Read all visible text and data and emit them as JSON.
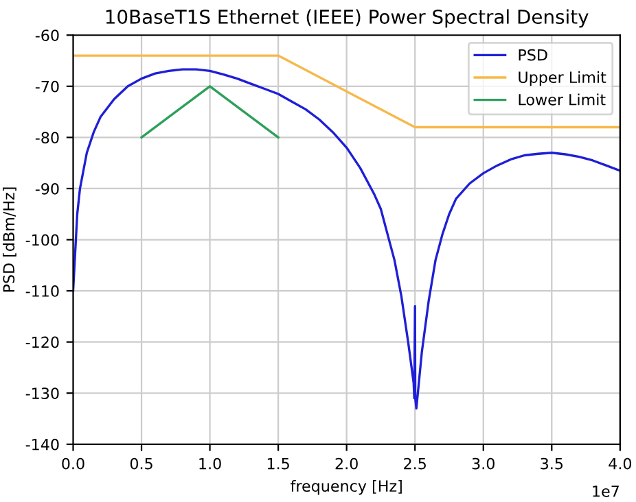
{
  "chart_data": {
    "type": "line",
    "title": "10BaseT1S Ethernet (IEEE) Power Spectral Density",
    "xlabel": "frequency [Hz]",
    "ylabel": "PSD [dBm/Hz]",
    "series": [
      {
        "name": "PSD",
        "color": "#1f1fd6",
        "x": [
          0.0,
          0.01,
          0.03,
          0.05,
          0.1,
          0.15,
          0.2,
          0.3,
          0.4,
          0.5,
          0.6,
          0.7,
          0.8,
          0.9,
          1.0,
          1.1,
          1.2,
          1.3,
          1.4,
          1.5,
          1.6,
          1.7,
          1.8,
          1.9,
          2.0,
          2.1,
          2.2,
          2.25,
          2.3,
          2.35,
          2.4,
          2.45,
          2.49,
          2.495,
          2.5,
          2.502,
          2.51,
          2.55,
          2.6,
          2.65,
          2.7,
          2.75,
          2.8,
          2.9,
          3.0,
          3.1,
          3.2,
          3.3,
          3.4,
          3.5,
          3.6,
          3.7,
          3.8,
          3.9,
          4.0
        ],
        "values": [
          -110,
          -105,
          -95,
          -90,
          -83,
          -79,
          -76,
          -72.5,
          -70,
          -68.5,
          -67.5,
          -67,
          -66.7,
          -66.7,
          -67,
          -67.7,
          -68.5,
          -69.5,
          -70.5,
          -71.5,
          -73,
          -74.5,
          -76.5,
          -79,
          -82,
          -86,
          -91,
          -94,
          -99,
          -104,
          -111,
          -120,
          -128,
          -131,
          -113,
          -131,
          -133,
          -122,
          -112,
          -104,
          -99,
          -95,
          -92,
          -89,
          -87,
          -85.5,
          -84.3,
          -83.5,
          -83.2,
          -83,
          -83.3,
          -83.8,
          -84.5,
          -85.5,
          -86.5
        ]
      },
      {
        "name": "Upper Limit",
        "color": "#f7b84a",
        "x": [
          0.0,
          1.5,
          2.5,
          4.0
        ],
        "values": [
          -64,
          -64,
          -78,
          -78
        ]
      },
      {
        "name": "Lower Limit",
        "color": "#2ca05a",
        "x": [
          0.5,
          1.0,
          1.5
        ],
        "values": [
          -80,
          -70,
          -80
        ]
      }
    ],
    "xlim": [
      0.0,
      4.0
    ],
    "ylim": [
      -140,
      -60
    ],
    "xticks": [
      {
        "value": 0,
        "label": "0.0"
      },
      0.5,
      {
        "value": 1,
        "label": "1.0"
      },
      1.5,
      {
        "value": 2,
        "label": "2.0"
      },
      2.5,
      {
        "value": 3,
        "label": "3.0"
      },
      3.5,
      {
        "value": 4,
        "label": "4.0"
      }
    ],
    "yticks": [
      -140,
      -130,
      -120,
      -110,
      -100,
      -90,
      -80,
      -70,
      -60
    ],
    "annotations": [
      "1e7"
    ],
    "grid": true,
    "legend": "top right",
    "marker": "none",
    "line_style": "solid"
  }
}
